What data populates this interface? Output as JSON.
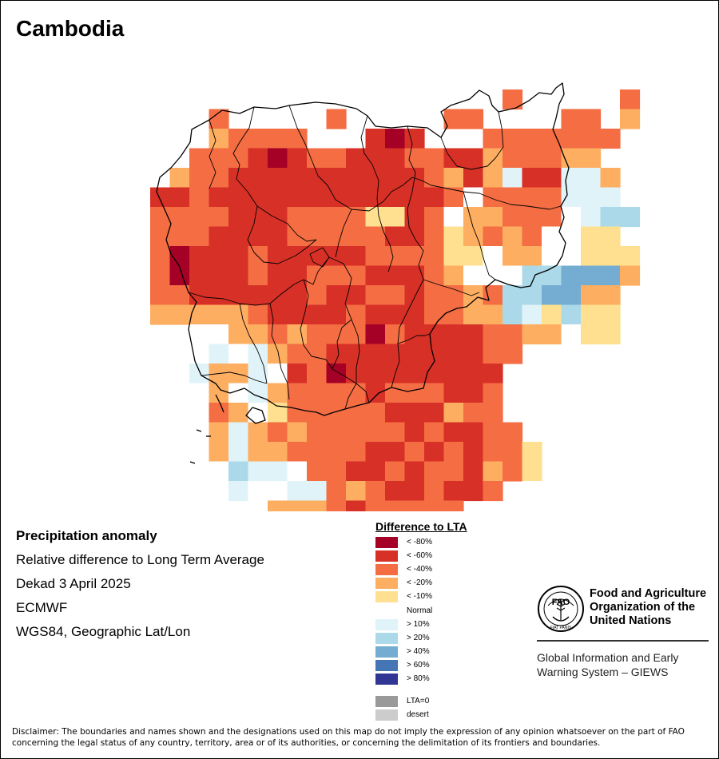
{
  "map": {
    "title": "Cambodia",
    "info": {
      "variable": "Precipitation anomaly",
      "description": "Relative difference to Long Term Average",
      "period": "Dekad 3 April 2025",
      "source": "ECMWF",
      "projection": "WGS84, Geographic Lat/Lon"
    },
    "legend": {
      "title": "Difference to LTA",
      "items": [
        {
          "label": "< -80%",
          "color": "#a50026",
          "key": "a"
        },
        {
          "label": "< -60%",
          "color": "#d73027",
          "key": "b"
        },
        {
          "label": "< -40%",
          "color": "#f46d43",
          "key": "c"
        },
        {
          "label": "< -20%",
          "color": "#fdae61",
          "key": "d"
        },
        {
          "label": "< -10%",
          "color": "#fee090",
          "key": "e"
        },
        {
          "label": "Normal",
          "color": "#ffffff",
          "key": "n"
        },
        {
          "label": "> 10%",
          "color": "#e0f3f8",
          "key": "f"
        },
        {
          "label": "> 20%",
          "color": "#abd9e9",
          "key": "g"
        },
        {
          "label": "> 40%",
          "color": "#74add1",
          "key": "h"
        },
        {
          "label": "> 60%",
          "color": "#4575b4",
          "key": "i"
        },
        {
          "label": "> 80%",
          "color": "#313695",
          "key": "j"
        },
        {
          "label": "LTA=0",
          "color": "#999999",
          "key": "z"
        },
        {
          "label": "desert",
          "color": "#cccccc",
          "key": "y"
        }
      ]
    },
    "organization": {
      "logo_text": "FAO",
      "logo_motto": "FIAT PANIS",
      "name_lines": [
        "Food and Agriculture",
        "Organization of the",
        "United Nations"
      ],
      "program_lines": [
        "Global Information and Early",
        "Warning System – GIEWS"
      ]
    },
    "disclaimer": "Disclaimer: The boundaries and names shown and the designations used on this map do not imply the expression of any opinion whatsoever on the part of FAO concerning the legal status of any country, territory, area or of its authorities, or concerning the delimitation of its frontiers and boundaries."
  }
}
